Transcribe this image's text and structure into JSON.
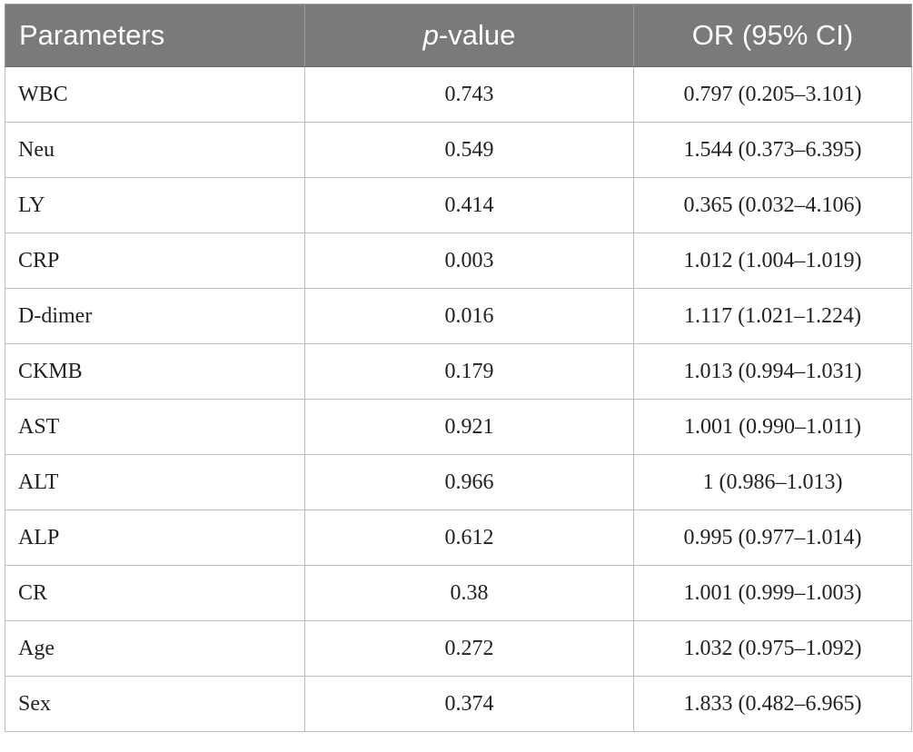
{
  "header": {
    "col1": "Parameters",
    "col2_italic": "p",
    "col2_rest": "-value",
    "col3": "OR (95% CI)"
  },
  "rows": [
    {
      "param": "WBC",
      "p": "0.743",
      "or": "0.797 (0.205–3.101)"
    },
    {
      "param": "Neu",
      "p": "0.549",
      "or": "1.544 (0.373–6.395)"
    },
    {
      "param": "LY",
      "p": "0.414",
      "or": "0.365 (0.032–4.106)"
    },
    {
      "param": "CRP",
      "p": "0.003",
      "or": "1.012 (1.004–1.019)"
    },
    {
      "param": "D-dimer",
      "p": "0.016",
      "or": "1.117 (1.021–1.224)"
    },
    {
      "param": "CKMB",
      "p": "0.179",
      "or": "1.013 (0.994–1.031)"
    },
    {
      "param": "AST",
      "p": "0.921",
      "or": "1.001 (0.990–1.011)"
    },
    {
      "param": "ALT",
      "p": "0.966",
      "or": "1 (0.986–1.013)"
    },
    {
      "param": "ALP",
      "p": "0.612",
      "or": "0.995 (0.977–1.014)"
    },
    {
      "param": "CR",
      "p": "0.38",
      "or": "1.001 (0.999–1.003)"
    },
    {
      "param": "Age",
      "p": "0.272",
      "or": "1.032 (0.975–1.092)"
    },
    {
      "param": "Sex",
      "p": "0.374",
      "or": "1.833 (0.482–6.965)"
    }
  ],
  "colors": {
    "header_bg": "#7a7a79",
    "header_text": "#ffffff",
    "border": "#bdbdbd"
  }
}
